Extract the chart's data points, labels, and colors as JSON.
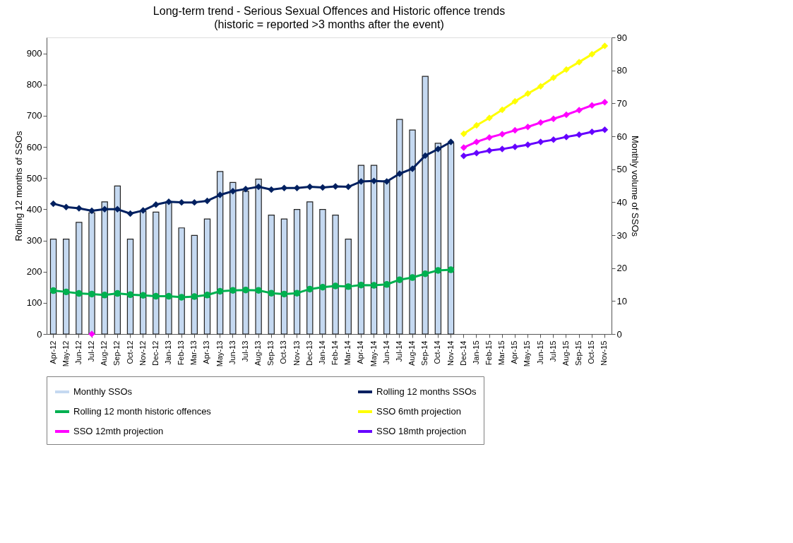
{
  "chart_data": {
    "type": "line",
    "title": "Long-term trend - Serious Sexual Offences and Historic offence trends",
    "subtitle": "(historic = reported >3 months after the event)",
    "ylabel": "Rolling 12 months of SSOs",
    "y2label": "Monthly volume of SSOs",
    "categories": [
      "Apr-12",
      "May-12",
      "Jun-12",
      "Jul-12",
      "Aug-12",
      "Sep-12",
      "Oct-12",
      "Nov-12",
      "Dec-12",
      "Jan-13",
      "Feb-13",
      "Mar-13",
      "Apr-13",
      "May-13",
      "Jun-13",
      "Jul-13",
      "Aug-13",
      "Sep-13",
      "Oct-13",
      "Nov-13",
      "Dec-13",
      "Jan-14",
      "Feb-14",
      "Mar-14",
      "Apr-14",
      "May-14",
      "Jun-14",
      "Jul-14",
      "Aug-14",
      "Sep-14",
      "Oct-14",
      "Nov-14",
      "Dec-14",
      "Jan-15",
      "Feb-15",
      "Mar-15",
      "Apr-15",
      "May-15",
      "Jun-15",
      "Jul-15",
      "Aug-15",
      "Sep-15",
      "Oct-15",
      "Nov-15"
    ],
    "series": [
      {
        "name": "Monthly SSOs",
        "type": "bar",
        "axis": "y2",
        "color": "#c5d9f1",
        "values": [
          28.8,
          28.8,
          33.9,
          36.8,
          40.1,
          44.9,
          28.8,
          37.2,
          37.0,
          40.1,
          32.2,
          29.9,
          34.9,
          49.3,
          46.0,
          43.3,
          47.0,
          36.1,
          34.9,
          37.8,
          40.1,
          37.8,
          36.1,
          28.8,
          51.2,
          51.2,
          46.5,
          65.1,
          61.9,
          78.2,
          57.9,
          58.0,
          null,
          null,
          null,
          null,
          null,
          null,
          null,
          null,
          null,
          null,
          null,
          null
        ]
      },
      {
        "name": "Rolling 12 months SSOs",
        "color": "#002060",
        "marker": "diamond",
        "values": [
          418,
          407,
          403,
          395,
          400,
          400,
          386,
          396,
          415,
          424,
          422,
          422,
          427,
          446,
          458,
          465,
          472,
          463,
          468,
          468,
          472,
          470,
          473,
          472,
          489,
          491,
          489,
          514,
          530,
          572,
          593,
          616,
          null,
          null,
          null,
          null,
          null,
          null,
          null,
          null,
          null,
          null,
          null,
          null
        ]
      },
      {
        "name": "Rolling 12 month historic offences",
        "color": "#00b050",
        "marker": "circle",
        "values": [
          139,
          135,
          130,
          128,
          125,
          130,
          126,
          124,
          121,
          121,
          118,
          120,
          125,
          137,
          140,
          141,
          140,
          131,
          128,
          131,
          144,
          150,
          154,
          152,
          157,
          156,
          159,
          174,
          181,
          193,
          204,
          206,
          null,
          null,
          null,
          null,
          null,
          null,
          null,
          null,
          null,
          null,
          null,
          null
        ]
      },
      {
        "name": "SSO 6mth projection",
        "color": "#ffff00",
        "marker": "diamond",
        "values": [
          null,
          null,
          null,
          null,
          null,
          null,
          null,
          null,
          null,
          null,
          null,
          null,
          null,
          null,
          null,
          null,
          null,
          null,
          null,
          null,
          null,
          null,
          null,
          null,
          null,
          null,
          null,
          null,
          null,
          null,
          null,
          null,
          642,
          669,
          693,
          719,
          746,
          771,
          794,
          822,
          848,
          872,
          897,
          924
        ]
      },
      {
        "name": "SSO 12mth projection",
        "color": "#ff00ff",
        "marker": "diamond",
        "values": [
          null,
          null,
          null,
          0,
          null,
          null,
          null,
          null,
          null,
          null,
          null,
          null,
          null,
          null,
          null,
          null,
          null,
          null,
          null,
          null,
          null,
          null,
          null,
          null,
          null,
          null,
          null,
          null,
          null,
          null,
          null,
          null,
          598,
          616,
          630,
          641,
          653,
          664,
          678,
          690,
          703,
          718,
          733,
          743
        ]
      },
      {
        "name": "SSO 18mth projection",
        "color": "#6600ff",
        "marker": "diamond",
        "values": [
          null,
          null,
          null,
          null,
          null,
          null,
          null,
          null,
          null,
          null,
          null,
          null,
          null,
          null,
          null,
          null,
          null,
          null,
          null,
          null,
          null,
          null,
          null,
          null,
          null,
          null,
          null,
          null,
          null,
          null,
          null,
          null,
          571,
          580,
          588,
          593,
          600,
          607,
          616,
          623,
          632,
          639,
          648,
          655
        ]
      }
    ],
    "ylim": [
      0,
      951
    ],
    "yticks": [
      0,
      100,
      200,
      300,
      400,
      500,
      600,
      700,
      800,
      900
    ],
    "y2lim": [
      0,
      90
    ],
    "y2ticks": [
      0,
      10,
      20,
      30,
      40,
      50,
      60,
      70,
      80,
      90
    ],
    "grid": false,
    "legend": "bottom"
  }
}
